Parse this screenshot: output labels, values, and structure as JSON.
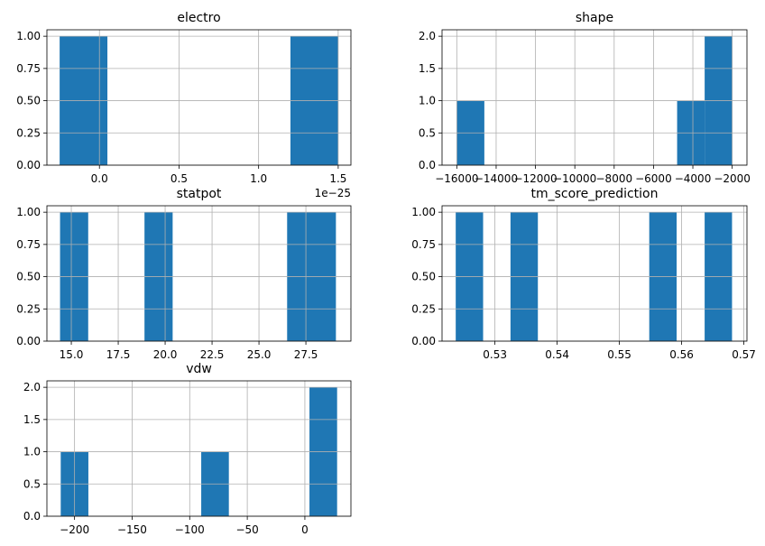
{
  "chart_data": [
    {
      "type": "bar",
      "title": "electro",
      "xlim": [
        -0.33,
        1.58
      ],
      "ylim": [
        0,
        1.05
      ],
      "xticks": [
        0.0,
        0.5,
        1.0,
        1.5
      ],
      "xtick_labels": [
        "0.0",
        "0.5",
        "1.0",
        "1.5"
      ],
      "yticks": [
        0,
        0.25,
        0.5,
        0.75,
        1.0
      ],
      "ytick_labels": [
        "0.00",
        "0.25",
        "0.50",
        "0.75",
        "1.00"
      ],
      "offset_label": "1e−25",
      "bins": [
        {
          "x0": -0.25,
          "x1": 0.05,
          "count": 1
        },
        {
          "x0": 1.2,
          "x1": 1.5,
          "count": 1
        }
      ],
      "grid": true
    },
    {
      "type": "bar",
      "title": "shape",
      "xlim": [
        -16750,
        -1250
      ],
      "ylim": [
        0,
        2.1
      ],
      "xticks": [
        -16000,
        -14000,
        -12000,
        -10000,
        -8000,
        -6000,
        -4000,
        -2000
      ],
      "xtick_labels": [
        "−16000",
        "−14000",
        "−12000",
        "−10000",
        "−8000",
        "−6000",
        "−4000",
        "−2000"
      ],
      "yticks": [
        0,
        0.5,
        1.0,
        1.5,
        2.0
      ],
      "ytick_labels": [
        "0.0",
        "0.5",
        "1.0",
        "1.5",
        "2.0"
      ],
      "bins": [
        {
          "x0": -16000,
          "x1": -14600,
          "count": 1
        },
        {
          "x0": -4800,
          "x1": -3400,
          "count": 1
        },
        {
          "x0": -3400,
          "x1": -2000,
          "count": 2
        }
      ],
      "grid": true
    },
    {
      "type": "bar",
      "title": "statpot",
      "xlim": [
        13.7,
        29.9
      ],
      "ylim": [
        0,
        1.05
      ],
      "xticks": [
        15.0,
        17.5,
        20.0,
        22.5,
        25.0,
        27.5
      ],
      "xtick_labels": [
        "15.0",
        "17.5",
        "20.0",
        "22.5",
        "25.0",
        "27.5"
      ],
      "yticks": [
        0,
        0.25,
        0.5,
        0.75,
        1.0
      ],
      "ytick_labels": [
        "0.00",
        "0.25",
        "0.50",
        "0.75",
        "1.00"
      ],
      "bins": [
        {
          "x0": 14.4,
          "x1": 15.9,
          "count": 1
        },
        {
          "x0": 18.9,
          "x1": 20.4,
          "count": 1
        },
        {
          "x0": 26.5,
          "x1": 29.1,
          "count": 1
        }
      ],
      "grid": true
    },
    {
      "type": "bar",
      "title": "tm_score_prediction",
      "xlim": [
        0.5215,
        0.5705
      ],
      "ylim": [
        0,
        1.05
      ],
      "xticks": [
        0.53,
        0.54,
        0.55,
        0.56,
        0.57
      ],
      "xtick_labels": [
        "0.53",
        "0.54",
        "0.55",
        "0.56",
        "0.57"
      ],
      "yticks": [
        0,
        0.25,
        0.5,
        0.75,
        1.0
      ],
      "ytick_labels": [
        "0.00",
        "0.25",
        "0.50",
        "0.75",
        "1.00"
      ],
      "bins": [
        {
          "x0": 0.5237,
          "x1": 0.5281,
          "count": 1
        },
        {
          "x0": 0.5325,
          "x1": 0.5369,
          "count": 1
        },
        {
          "x0": 0.5548,
          "x1": 0.5592,
          "count": 1
        },
        {
          "x0": 0.5637,
          "x1": 0.5681,
          "count": 1
        }
      ],
      "grid": true
    },
    {
      "type": "bar",
      "title": "vdw",
      "xlim": [
        -224,
        40
      ],
      "ylim": [
        0,
        2.1
      ],
      "xticks": [
        -200,
        -150,
        -100,
        -50,
        0
      ],
      "xtick_labels": [
        "−200",
        "−150",
        "−100",
        "−50",
        "0"
      ],
      "yticks": [
        0,
        0.5,
        1.0,
        1.5,
        2.0
      ],
      "ytick_labels": [
        "0.0",
        "0.5",
        "1.0",
        "1.5",
        "2.0"
      ],
      "bins": [
        {
          "x0": -212,
          "x1": -188,
          "count": 1
        },
        {
          "x0": -90,
          "x1": -66,
          "count": 1
        },
        {
          "x0": 4,
          "x1": 28,
          "count": 2
        }
      ],
      "grid": true
    }
  ],
  "colors": {
    "bar": "#1f77b4",
    "grid": "#b0b0b0",
    "axis": "#000000"
  }
}
